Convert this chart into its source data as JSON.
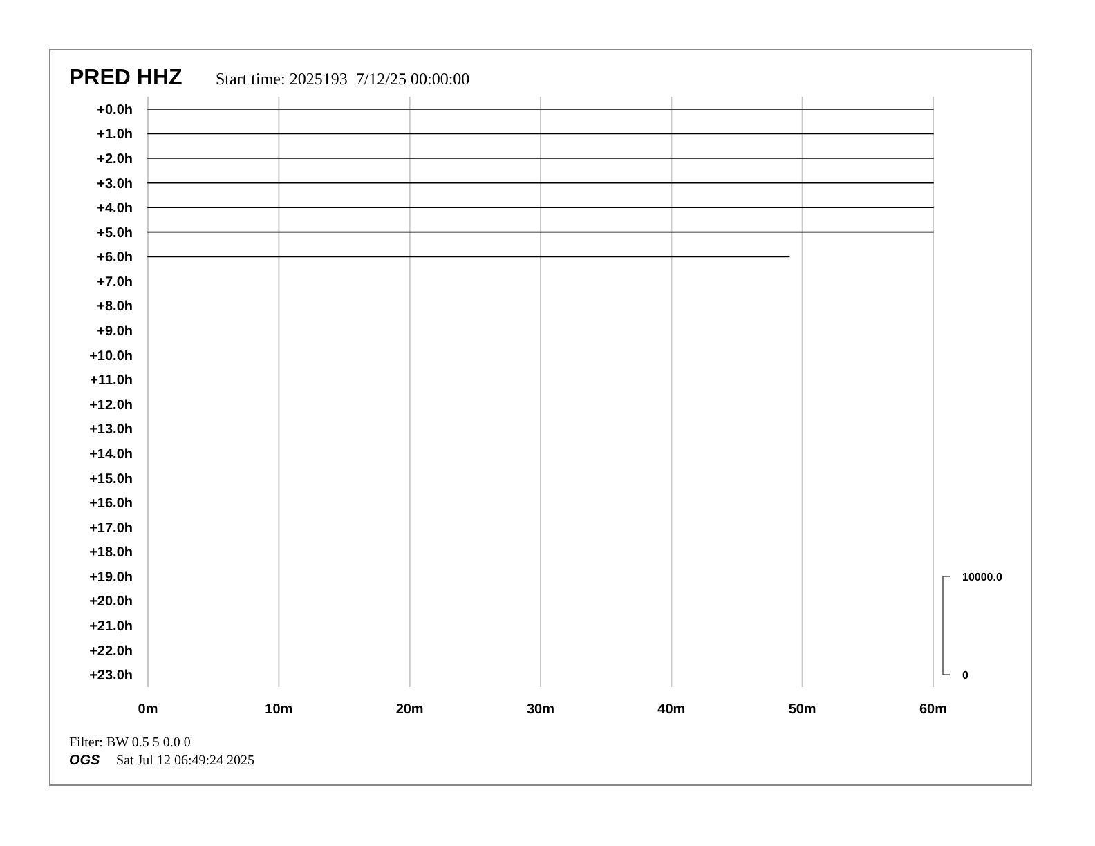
{
  "chart_data": {
    "type": "line",
    "title": "PRED HHZ",
    "subtitle": "Start time: 2025193  7/12/25 00:00:00",
    "xlim": [
      0,
      60
    ],
    "xticks": [
      {
        "value": 0,
        "label": "0m"
      },
      {
        "value": 10,
        "label": "10m"
      },
      {
        "value": 20,
        "label": "20m"
      },
      {
        "value": 30,
        "label": "30m"
      },
      {
        "value": 40,
        "label": "40m"
      },
      {
        "value": 50,
        "label": "50m"
      },
      {
        "value": 60,
        "label": "60m"
      }
    ],
    "ylim": [
      23.5,
      -0.5
    ],
    "yticks": [
      {
        "value": 0,
        "label": "+0.0h"
      },
      {
        "value": 1,
        "label": "+1.0h"
      },
      {
        "value": 2,
        "label": "+2.0h"
      },
      {
        "value": 3,
        "label": "+3.0h"
      },
      {
        "value": 4,
        "label": "+4.0h"
      },
      {
        "value": 5,
        "label": "+5.0h"
      },
      {
        "value": 6,
        "label": "+6.0h"
      },
      {
        "value": 7,
        "label": "+7.0h"
      },
      {
        "value": 8,
        "label": "+8.0h"
      },
      {
        "value": 9,
        "label": "+9.0h"
      },
      {
        "value": 10,
        "label": "+10.0h"
      },
      {
        "value": 11,
        "label": "+11.0h"
      },
      {
        "value": 12,
        "label": "+12.0h"
      },
      {
        "value": 13,
        "label": "+13.0h"
      },
      {
        "value": 14,
        "label": "+14.0h"
      },
      {
        "value": 15,
        "label": "+15.0h"
      },
      {
        "value": 16,
        "label": "+16.0h"
      },
      {
        "value": 17,
        "label": "+17.0h"
      },
      {
        "value": 18,
        "label": "+18.0h"
      },
      {
        "value": 19,
        "label": "+19.0h"
      },
      {
        "value": 20,
        "label": "+20.0h"
      },
      {
        "value": 21,
        "label": "+21.0h"
      },
      {
        "value": 22,
        "label": "+22.0h"
      },
      {
        "value": 23,
        "label": "+23.0h"
      }
    ],
    "grid": "x",
    "series": [
      {
        "color": "#000000",
        "x": [
          0,
          60
        ],
        "values": [
          0,
          0
        ]
      },
      {
        "color": "#000000",
        "x": [
          0,
          60
        ],
        "values": [
          1,
          1
        ]
      },
      {
        "color": "#000000",
        "x": [
          0,
          60
        ],
        "values": [
          2,
          2
        ]
      },
      {
        "color": "#000000",
        "x": [
          0,
          60
        ],
        "values": [
          3,
          3
        ]
      },
      {
        "color": "#000000",
        "x": [
          0,
          60
        ],
        "values": [
          4,
          4
        ]
      },
      {
        "color": "#000000",
        "x": [
          0,
          60
        ],
        "values": [
          5,
          5
        ]
      },
      {
        "color": "#000000",
        "x": [
          0,
          49
        ],
        "values": [
          6,
          6
        ]
      }
    ],
    "annotations": [
      "Filter: BW 0.5 5 0.0 0",
      "OGS",
      "Sat Jul 12 06:49:24 2025",
      "10000.0",
      "0"
    ]
  }
}
